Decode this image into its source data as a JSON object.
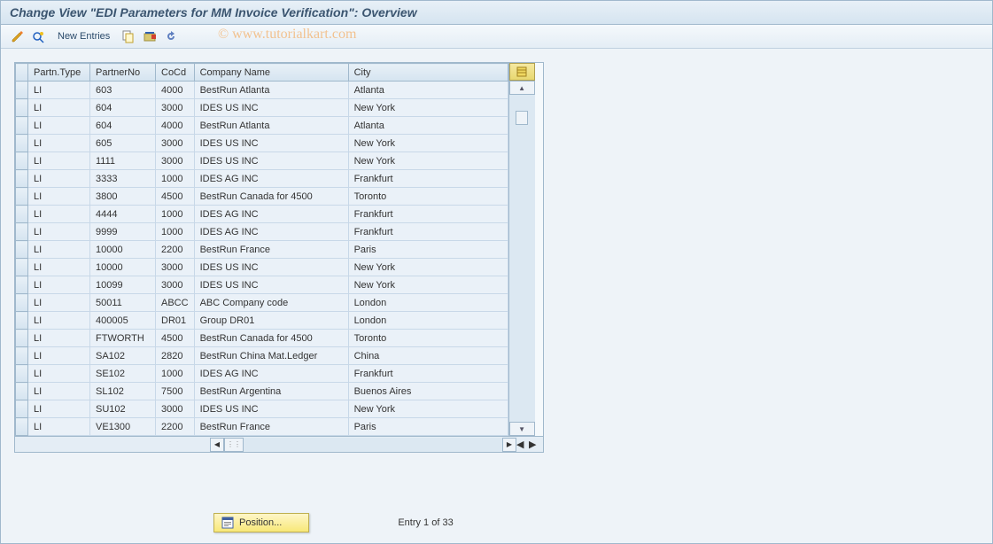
{
  "window": {
    "title": "Change View \"EDI Parameters for MM Invoice Verification\": Overview"
  },
  "toolbar": {
    "new_entries_label": "New Entries"
  },
  "watermark": "© www.tutorialkart.com",
  "table": {
    "columns": {
      "partn_type": "Partn.Type",
      "partner_no": "PartnerNo",
      "cocd": "CoCd",
      "company_name": "Company Name",
      "city": "City"
    },
    "rows": [
      {
        "pt": "LI",
        "pn": "603",
        "co": "4000",
        "cn": "BestRun Atlanta",
        "ci": "Atlanta"
      },
      {
        "pt": "LI",
        "pn": "604",
        "co": "3000",
        "cn": "IDES US INC",
        "ci": "New York"
      },
      {
        "pt": "LI",
        "pn": "604",
        "co": "4000",
        "cn": "BestRun Atlanta",
        "ci": "Atlanta"
      },
      {
        "pt": "LI",
        "pn": "605",
        "co": "3000",
        "cn": "IDES US INC",
        "ci": "New York"
      },
      {
        "pt": "LI",
        "pn": "1111",
        "co": "3000",
        "cn": "IDES US INC",
        "ci": "New York"
      },
      {
        "pt": "LI",
        "pn": "3333",
        "co": "1000",
        "cn": "IDES AG INC",
        "ci": "Frankfurt"
      },
      {
        "pt": "LI",
        "pn": "3800",
        "co": "4500",
        "cn": "BestRun Canada for 4500",
        "ci": "Toronto"
      },
      {
        "pt": "LI",
        "pn": "4444",
        "co": "1000",
        "cn": "IDES AG INC",
        "ci": "Frankfurt"
      },
      {
        "pt": "LI",
        "pn": "9999",
        "co": "1000",
        "cn": "IDES AG INC",
        "ci": "Frankfurt"
      },
      {
        "pt": "LI",
        "pn": "10000",
        "co": "2200",
        "cn": "BestRun France",
        "ci": "Paris"
      },
      {
        "pt": "LI",
        "pn": "10000",
        "co": "3000",
        "cn": "IDES US INC",
        "ci": "New York"
      },
      {
        "pt": "LI",
        "pn": "10099",
        "co": "3000",
        "cn": "IDES US INC",
        "ci": "New York"
      },
      {
        "pt": "LI",
        "pn": "50011",
        "co": "ABCC",
        "cn": "ABC Company code",
        "ci": "London"
      },
      {
        "pt": "LI",
        "pn": "400005",
        "co": "DR01",
        "cn": "Group DR01",
        "ci": "London"
      },
      {
        "pt": "LI",
        "pn": "FTWORTH",
        "co": "4500",
        "cn": "BestRun Canada for 4500",
        "ci": "Toronto"
      },
      {
        "pt": "LI",
        "pn": "SA102",
        "co": "2820",
        "cn": "BestRun China Mat.Ledger",
        "ci": "China"
      },
      {
        "pt": "LI",
        "pn": "SE102",
        "co": "1000",
        "cn": "IDES AG INC",
        "ci": "Frankfurt"
      },
      {
        "pt": "LI",
        "pn": "SL102",
        "co": "7500",
        "cn": "BestRun Argentina",
        "ci": "Buenos Aires"
      },
      {
        "pt": "LI",
        "pn": "SU102",
        "co": "3000",
        "cn": "IDES US INC",
        "ci": "New York"
      },
      {
        "pt": "LI",
        "pn": "VE1300",
        "co": "2200",
        "cn": "BestRun France",
        "ci": "Paris"
      }
    ]
  },
  "footer": {
    "position_label": "Position...",
    "entry_text": "Entry 1 of 33"
  },
  "colors": {
    "title_text": "#3b5570",
    "header_bg_top": "#e8f0f7",
    "header_bg_bottom": "#d5e4f0",
    "border": "#a0b8cc",
    "cell_bg": "#eaf1f8",
    "yellow_btn_top": "#fef6c8",
    "yellow_btn_bottom": "#f8e878"
  }
}
